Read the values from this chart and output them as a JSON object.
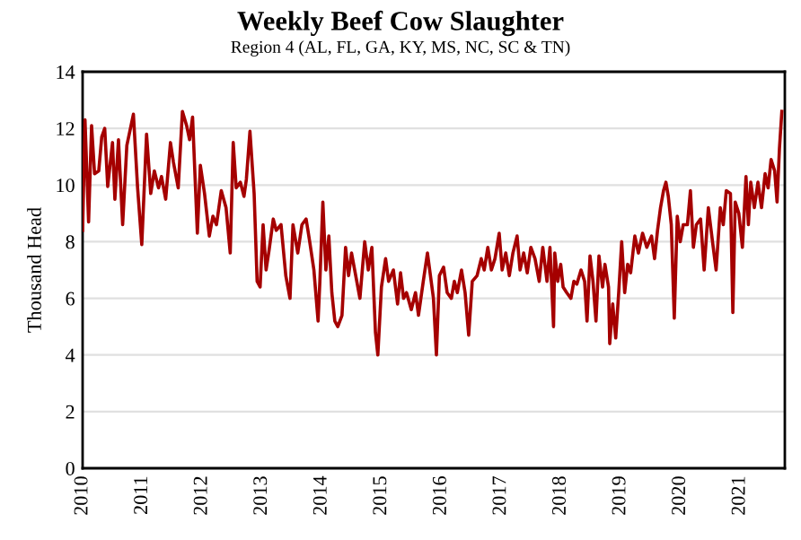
{
  "chart_data": {
    "type": "line",
    "title": "Weekly Beef Cow Slaughter",
    "subtitle": "Region 4 (AL, FL, GA, KY, MS, NC, SC & TN)",
    "ylabel": "Thousand Head",
    "xlim": [
      2010,
      2021.75
    ],
    "xticks": [
      2010,
      2011,
      2012,
      2013,
      2014,
      2015,
      2016,
      2017,
      2018,
      2019,
      2020,
      2021
    ],
    "ylim": [
      0,
      14
    ],
    "yticks": [
      0,
      2,
      4,
      6,
      8,
      10,
      12,
      14
    ],
    "grid": "y",
    "legend": false,
    "marker": "none",
    "line_style": "solid",
    "series": [
      {
        "color": "#a50000",
        "x": [
          2010.0,
          2010.04,
          2010.1,
          2010.15,
          2010.2,
          2010.27,
          2010.32,
          2010.37,
          2010.42,
          2010.5,
          2010.54,
          2010.6,
          2010.67,
          2010.74,
          2010.79,
          2010.85,
          2010.92,
          2010.99,
          2011.07,
          2011.14,
          2011.2,
          2011.27,
          2011.32,
          2011.39,
          2011.47,
          2011.52,
          2011.6,
          2011.67,
          2011.74,
          2011.79,
          2011.84,
          2011.92,
          2011.97,
          2012.04,
          2012.12,
          2012.18,
          2012.24,
          2012.32,
          2012.4,
          2012.47,
          2012.52,
          2012.57,
          2012.64,
          2012.7,
          2012.74,
          2012.8,
          2012.87,
          2012.92,
          2012.97,
          2013.02,
          2013.07,
          2013.12,
          2013.19,
          2013.24,
          2013.32,
          2013.4,
          2013.47,
          2013.52,
          2013.6,
          2013.67,
          2013.74,
          2013.8,
          2013.87,
          2013.94,
          2013.97,
          2014.02,
          2014.07,
          2014.12,
          2014.17,
          2014.22,
          2014.27,
          2014.34,
          2014.4,
          2014.45,
          2014.5,
          2014.57,
          2014.64,
          2014.72,
          2014.78,
          2014.84,
          2014.9,
          2014.94,
          2015.0,
          2015.07,
          2015.12,
          2015.2,
          2015.27,
          2015.32,
          2015.37,
          2015.42,
          2015.5,
          2015.57,
          2015.62,
          2015.7,
          2015.77,
          2015.82,
          2015.87,
          2015.92,
          2015.97,
          2016.04,
          2016.1,
          2016.17,
          2016.22,
          2016.27,
          2016.34,
          2016.4,
          2016.46,
          2016.52,
          2016.6,
          2016.67,
          2016.72,
          2016.78,
          2016.84,
          2016.9,
          2016.97,
          2017.02,
          2017.08,
          2017.14,
          2017.2,
          2017.27,
          2017.32,
          2017.38,
          2017.44,
          2017.5,
          2017.57,
          2017.64,
          2017.7,
          2017.77,
          2017.82,
          2017.88,
          2017.9,
          2017.95,
          2018.0,
          2018.04,
          2018.1,
          2018.17,
          2018.22,
          2018.27,
          2018.34,
          2018.4,
          2018.44,
          2018.49,
          2018.54,
          2018.59,
          2018.64,
          2018.7,
          2018.74,
          2018.8,
          2018.82,
          2018.87,
          2018.92,
          2018.97,
          2019.02,
          2019.07,
          2019.12,
          2019.17,
          2019.24,
          2019.3,
          2019.37,
          2019.44,
          2019.52,
          2019.57,
          2019.62,
          2019.67,
          2019.72,
          2019.76,
          2019.8,
          2019.85,
          2019.9,
          2019.95,
          2020.0,
          2020.05,
          2020.12,
          2020.17,
          2020.22,
          2020.27,
          2020.34,
          2020.4,
          2020.47,
          2020.54,
          2020.6,
          2020.67,
          2020.72,
          2020.77,
          2020.84,
          2020.88,
          2020.92,
          2020.98,
          2021.04,
          2021.1,
          2021.14,
          2021.18,
          2021.24,
          2021.3,
          2021.36,
          2021.42,
          2021.47,
          2021.52,
          2021.58,
          2021.62,
          2021.66,
          2021.7
        ],
        "values": [
          8.4,
          12.3,
          8.7,
          12.1,
          10.4,
          10.5,
          11.7,
          12.0,
          9.95,
          11.5,
          9.5,
          11.6,
          8.6,
          11.4,
          11.9,
          12.5,
          9.9,
          7.9,
          11.8,
          9.7,
          10.5,
          9.9,
          10.3,
          9.5,
          11.5,
          10.8,
          9.9,
          12.6,
          12.1,
          11.6,
          12.4,
          8.3,
          10.7,
          9.7,
          8.2,
          8.9,
          8.6,
          9.8,
          9.2,
          7.6,
          11.5,
          9.9,
          10.1,
          9.6,
          10.2,
          11.9,
          9.7,
          6.6,
          6.4,
          8.6,
          7.0,
          7.7,
          8.8,
          8.4,
          8.6,
          6.8,
          6.0,
          8.6,
          7.6,
          8.6,
          8.8,
          8.0,
          7.0,
          5.2,
          6.6,
          9.4,
          7.0,
          8.2,
          6.2,
          5.2,
          5.0,
          5.4,
          7.8,
          6.8,
          7.6,
          6.8,
          6.0,
          8.0,
          7.0,
          7.8,
          4.8,
          4.0,
          6.4,
          7.4,
          6.6,
          7.0,
          5.8,
          6.9,
          6.0,
          6.2,
          5.6,
          6.2,
          5.4,
          6.6,
          7.6,
          6.8,
          6.0,
          4.0,
          6.8,
          7.1,
          6.2,
          6.0,
          6.6,
          6.2,
          7.0,
          6.2,
          4.7,
          6.6,
          6.8,
          7.4,
          7.0,
          7.8,
          7.0,
          7.4,
          8.3,
          7.0,
          7.6,
          6.8,
          7.6,
          8.2,
          7.0,
          7.6,
          6.9,
          7.8,
          7.4,
          6.6,
          7.8,
          6.6,
          7.8,
          5.0,
          7.6,
          6.6,
          7.2,
          6.4,
          6.2,
          6.0,
          6.6,
          6.5,
          7.0,
          6.6,
          5.2,
          7.5,
          6.6,
          5.2,
          7.5,
          6.4,
          7.2,
          6.4,
          4.4,
          5.8,
          4.6,
          6.2,
          8.0,
          6.2,
          7.2,
          6.9,
          8.2,
          7.6,
          8.3,
          7.8,
          8.2,
          7.4,
          8.4,
          9.2,
          9.8,
          10.1,
          9.6,
          8.6,
          5.3,
          8.9,
          8.0,
          8.6,
          8.6,
          9.8,
          7.8,
          8.6,
          8.8,
          7.0,
          9.2,
          8.0,
          7.0,
          9.2,
          8.6,
          9.8,
          9.7,
          5.5,
          9.4,
          9.0,
          7.8,
          10.3,
          8.6,
          10.1,
          9.2,
          10.1,
          9.2,
          10.4,
          9.9,
          10.9,
          10.5,
          9.4,
          11.3,
          12.6
        ]
      }
    ]
  }
}
